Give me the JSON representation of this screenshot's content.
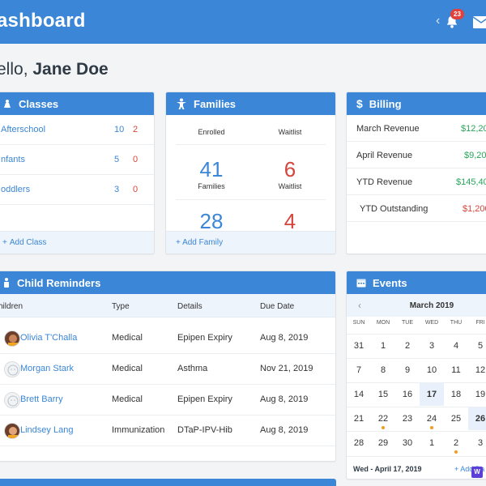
{
  "header": {
    "title": "ashboard",
    "notification_count": "23"
  },
  "greeting": {
    "prefix": "ello, ",
    "name": "Jane Doe"
  },
  "classes": {
    "title": "Classes",
    "rows": [
      {
        "name": "Afterschool",
        "count_a": "10",
        "count_b": "2"
      },
      {
        "name": "nfants",
        "count_a": "5",
        "count_b": "0"
      },
      {
        "name": "oddlers",
        "count_a": "3",
        "count_b": "0"
      }
    ],
    "footer": "Add Class"
  },
  "families": {
    "title": "Families",
    "col1_label": "Enrolled",
    "col2_label": "Waitlist",
    "enrolled_families": "41",
    "waitlist_families": "6",
    "families_label": "Families",
    "waitlist_label": "Waitlist",
    "enrolled_second": "28",
    "waitlist_second": "4",
    "footer": "+ Add Family"
  },
  "billing": {
    "title": "Billing",
    "rows": [
      {
        "label": "March Revenue",
        "value": "$12,20"
      },
      {
        "label": "April Revenue",
        "value": "$9,20"
      },
      {
        "label": "YTD Revenue",
        "value": "$145,40"
      },
      {
        "label": "YTD Outstanding",
        "value": "$1,200"
      }
    ]
  },
  "reminders": {
    "title": "Child Reminders",
    "columns": {
      "children": "hildren",
      "type": "Type",
      "details": "Details",
      "due": "Due Date"
    },
    "rows": [
      {
        "name": "Olivia T'Challa",
        "type": "Medical",
        "details": "Epipen Expiry",
        "due": "Aug 8, 2019"
      },
      {
        "name": "Morgan Stark",
        "type": "Medical",
        "details": "Asthma",
        "due": "Nov 21, 2019"
      },
      {
        "name": "Brett Barry",
        "type": "Medical",
        "details": "Epipen Expiry",
        "due": "Aug 8, 2019"
      },
      {
        "name": "Lindsey Lang",
        "type": "Immunization",
        "details": "DTaP-IPV-Hib",
        "due": "Aug 8, 2019"
      }
    ]
  },
  "events": {
    "title": "Events",
    "month": "March 2019",
    "dows": [
      "SUN",
      "MON",
      "TUE",
      "WED",
      "THU",
      "FRI"
    ],
    "weeks": [
      [
        "31",
        "1",
        "2",
        "3",
        "4",
        "5"
      ],
      [
        "7",
        "8",
        "9",
        "10",
        "11",
        "12"
      ],
      [
        "14",
        "15",
        "16",
        "17",
        "18",
        "19"
      ],
      [
        "21",
        "22",
        "23",
        "24",
        "25",
        "26"
      ],
      [
        "28",
        "29",
        "30",
        "1",
        "2",
        "3"
      ]
    ],
    "today": "17",
    "event_days": [
      "22",
      "24",
      "2"
    ],
    "selected_date": "Wed - April 17, 2019",
    "add_label": "+ Add Da"
  },
  "colors": {
    "brand": "#3b86d6",
    "danger": "#d6453c",
    "success": "#27a55a",
    "event_dot": "#f39c1f"
  }
}
